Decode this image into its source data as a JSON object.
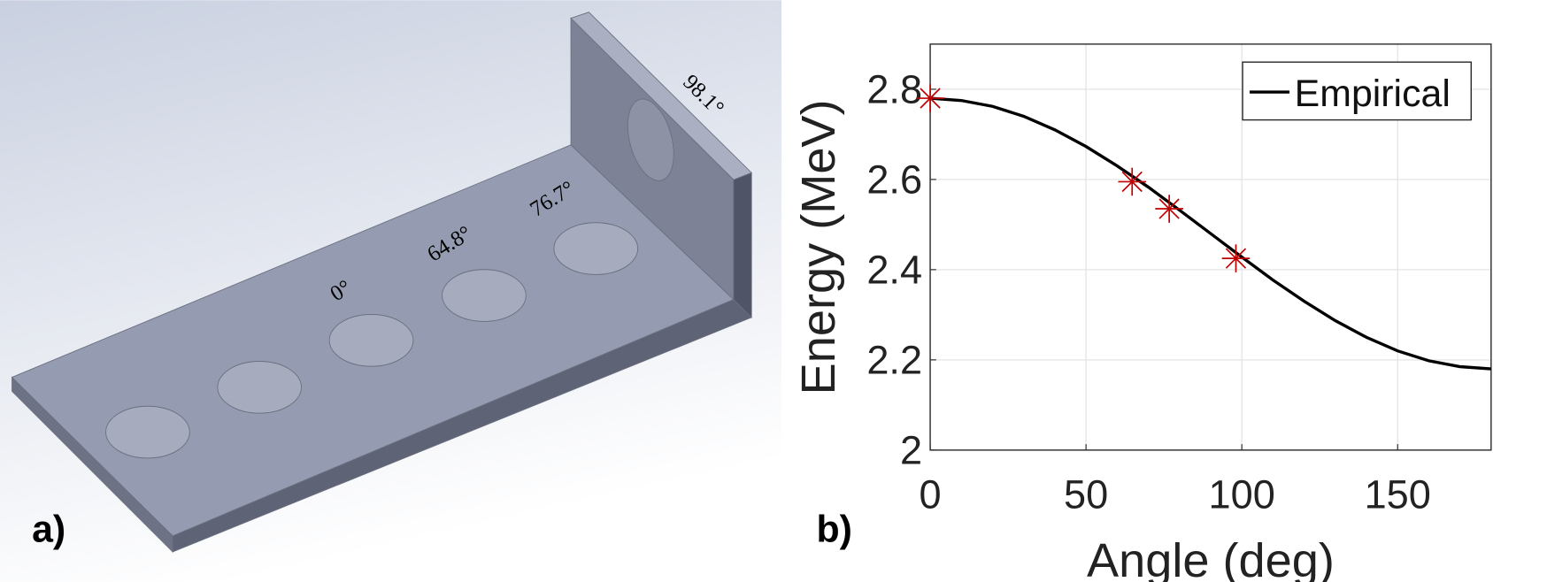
{
  "panel_a": {
    "label": "a)",
    "hole_labels": [
      "0°",
      "64.8°",
      "76.7°",
      "98.1°"
    ]
  },
  "chart_data": {
    "type": "line",
    "panel_label": "b)",
    "x_label": "Angle (deg)",
    "y_label": "Energy (MeV)",
    "x": [
      0,
      10,
      20,
      30,
      40,
      50,
      60,
      70,
      80,
      90,
      100,
      110,
      120,
      130,
      140,
      150,
      160,
      170,
      180
    ],
    "series": [
      {
        "name": "Empirical",
        "color": "#000000",
        "values": [
          2.78,
          2.775,
          2.762,
          2.74,
          2.71,
          2.673,
          2.63,
          2.583,
          2.532,
          2.48,
          2.428,
          2.377,
          2.33,
          2.287,
          2.25,
          2.22,
          2.198,
          2.185,
          2.18
        ]
      }
    ],
    "markers": {
      "color": "#c00000",
      "x": [
        0,
        64.8,
        76.7,
        98.1
      ],
      "values": [
        2.78,
        2.595,
        2.535,
        2.425
      ]
    },
    "xlim": [
      0,
      180
    ],
    "ylim": [
      2,
      2.9
    ],
    "xticks": [
      0,
      50,
      100,
      150
    ],
    "yticks": [
      2,
      2.2,
      2.4,
      2.6,
      2.8
    ],
    "grid": true,
    "legend": "upper right"
  }
}
